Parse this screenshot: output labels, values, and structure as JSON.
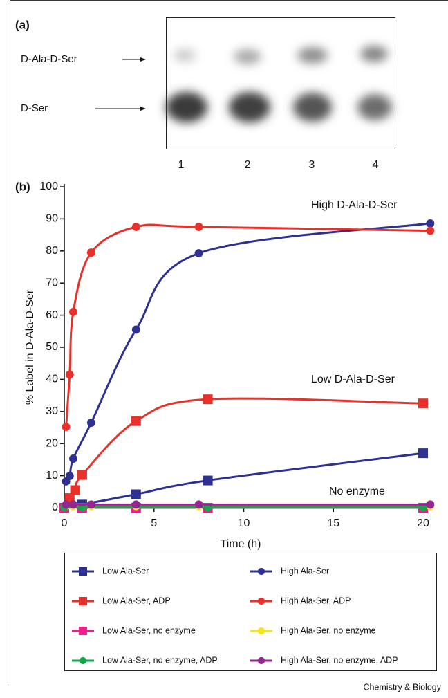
{
  "panel_a": {
    "label": "(a)",
    "bands": [
      "D-Ala-D-Ser",
      "D-Ser"
    ],
    "lanes": [
      "1",
      "2",
      "3",
      "4"
    ]
  },
  "chart_data": {
    "type": "line",
    "panel_label": "(b)",
    "y_label": "% Label in D-Ala-D-Ser",
    "x_label": "Time (h)",
    "annotations": [
      "High D-Ala-D-Ser",
      "Low D-Ala-D-Ser",
      "No enzyme"
    ],
    "xlim": [
      0,
      20.6
    ],
    "ylim": [
      0,
      100
    ],
    "xticks": [
      0,
      5,
      10,
      15,
      20
    ],
    "yticks": [
      0,
      10,
      20,
      30,
      40,
      50,
      60,
      70,
      80,
      90,
      100
    ],
    "series": [
      {
        "name": "Low Ala-Ser",
        "color": "#2e3192",
        "marker": "square",
        "x": [
          0,
          1,
          4,
          8,
          20
        ],
        "values": [
          0,
          1,
          4.2,
          8.5,
          17
        ]
      },
      {
        "name": "High Ala-Ser",
        "color": "#2e3192",
        "marker": "circle",
        "x": [
          0.1,
          0.3,
          0.5,
          1.5,
          4,
          7.5,
          20.4
        ],
        "values": [
          8.2,
          9.9,
          15.3,
          26.5,
          55.5,
          79.3,
          88.6
        ]
      },
      {
        "name": "Low Ala-Ser, ADP",
        "color": "#e8312a",
        "marker": "square",
        "x": [
          0,
          0.3,
          0.6,
          1,
          4,
          8,
          20
        ],
        "values": [
          0,
          3,
          5.5,
          10.2,
          27,
          33.8,
          32.5
        ]
      },
      {
        "name": "High Ala-Ser, ADP",
        "color": "#e8312a",
        "marker": "circle",
        "x": [
          0.1,
          0.3,
          0.5,
          1.5,
          4,
          7.5,
          20.4
        ],
        "values": [
          25.2,
          41.5,
          61,
          79.5,
          87.5,
          87.5,
          86.3
        ]
      },
      {
        "name": "Low Ala-Ser, no enzyme",
        "color": "#ec1c8c",
        "marker": "square",
        "x": [
          0,
          1,
          4,
          8,
          20
        ],
        "values": [
          0,
          0,
          0,
          0,
          0
        ]
      },
      {
        "name": "High Ala-Ser, no enzyme",
        "color": "#f5e616",
        "marker": "circle",
        "x": [
          0.1,
          0.5,
          1.5,
          4,
          7.5,
          20.4
        ],
        "values": [
          0.5,
          0.5,
          0.5,
          0.5,
          0.5,
          0.5
        ]
      },
      {
        "name": "Low Ala-Ser, no enzyme, ADP",
        "color": "#13a84a",
        "marker": "circle",
        "x": [
          0,
          1,
          8,
          20
        ],
        "values": [
          0.2,
          0.2,
          0.2,
          0.2
        ]
      },
      {
        "name": "High Ala-Ser, no enzyme, ADP",
        "color": "#92278f",
        "marker": "circle",
        "x": [
          0.1,
          0.5,
          1.5,
          4,
          7.5,
          20.4
        ],
        "values": [
          1,
          1,
          1,
          1,
          1,
          1
        ]
      }
    ]
  },
  "credit": "Chemistry & Biology"
}
